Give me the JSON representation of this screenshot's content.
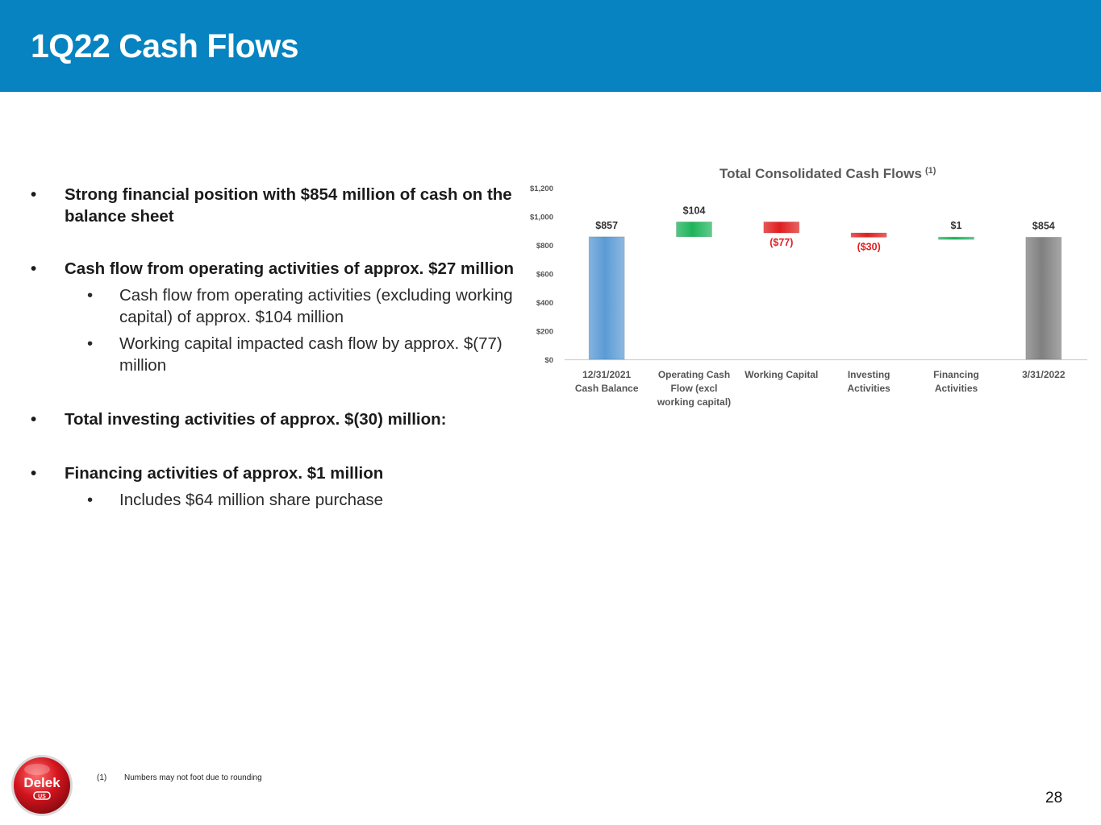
{
  "header": {
    "title": "1Q22 Cash Flows"
  },
  "bullets": [
    {
      "text": "Strong financial position with $854 million of cash on the balance sheet",
      "subs": []
    },
    {
      "text": "Cash flow from operating activities of approx. $27 million",
      "subs": [
        "Cash flow from operating activities (excluding working capital) of approx. $104 million",
        "Working capital impacted cash flow by approx. $(77) million"
      ]
    },
    {
      "text": "Total investing activities of approx. $(30) million:",
      "subs": []
    },
    {
      "text": "Financing activities of approx. $1 million",
      "subs": [
        "Includes $64 million share purchase"
      ]
    }
  ],
  "bullet_glyph": "•",
  "chart_data": {
    "type": "bar",
    "subtype": "waterfall",
    "title": "Total Consolidated Cash Flows",
    "title_superscript": "(1)",
    "categories": [
      [
        "12/31/2021",
        "Cash Balance"
      ],
      [
        "Operating Cash",
        "Flow (excl",
        "working capital)"
      ],
      [
        "Working Capital"
      ],
      [
        "Investing",
        "Activities"
      ],
      [
        "Financing",
        "Activities"
      ],
      [
        "3/31/2022"
      ]
    ],
    "values": [
      857,
      104,
      -77,
      -30,
      1,
      854
    ],
    "kinds": [
      "total",
      "delta",
      "delta",
      "delta",
      "delta",
      "total"
    ],
    "data_labels": [
      "$857",
      "$104",
      "($77)",
      "($30)",
      "$1",
      "$854"
    ],
    "y_ticks": [
      "$0",
      "$200",
      "$400",
      "$600",
      "$800",
      "$1,000",
      "$1,200"
    ],
    "ylim": [
      0,
      1200
    ],
    "colors": {
      "start_total": "#5b9bd5",
      "end_total": "#808080",
      "increase": "#1eb45a",
      "decrease": "#e01e1e",
      "negative_label": "#e0201e",
      "label": "#333333",
      "title": "#5a5a5a"
    }
  },
  "footnote": {
    "num": "(1)",
    "text": "Numbers may not foot due to rounding"
  },
  "page_number": "28",
  "logo": {
    "text": "Delek",
    "subtext": "US"
  }
}
